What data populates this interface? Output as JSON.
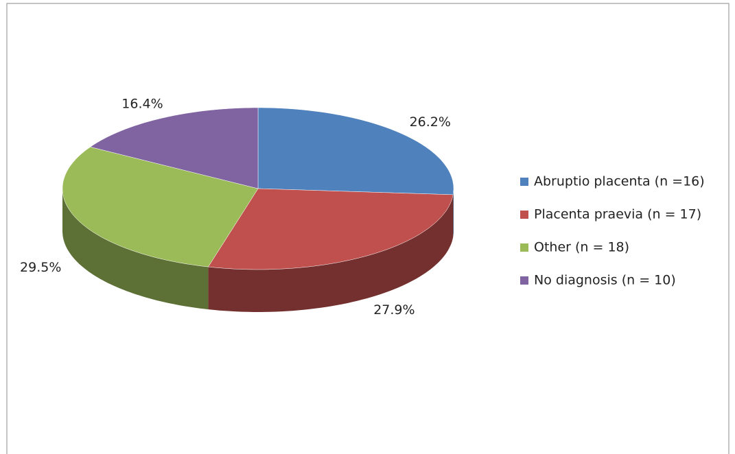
{
  "chart_data": {
    "type": "pie",
    "categories": [
      "Abruptio placenta (n =16)",
      "Placenta praevia (n = 17)",
      "Other (n = 18)",
      "No diagnosis (n = 10)"
    ],
    "values": [
      26.2,
      27.9,
      29.5,
      16.4
    ],
    "value_labels": [
      "26.2%",
      "27.9%",
      "29.5%",
      "16.4%"
    ],
    "colors": [
      "#4f81bd",
      "#c0504d",
      "#9bbb59",
      "#8064a2"
    ],
    "legend": "right"
  }
}
